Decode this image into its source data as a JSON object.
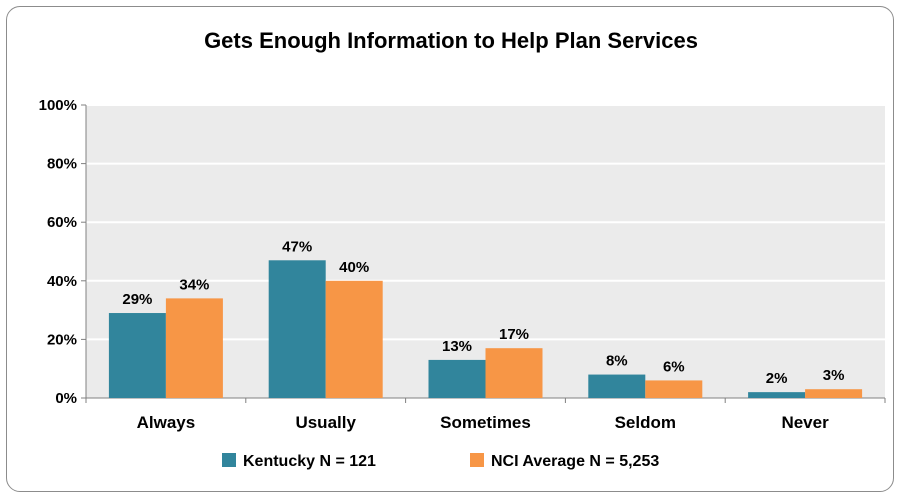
{
  "chart_data": {
    "type": "bar",
    "title": "Gets Enough Information to Help Plan Services",
    "xlabel": "",
    "ylabel": "",
    "categories": [
      "Always",
      "Usually",
      "Sometimes",
      "Seldom",
      "Never"
    ],
    "series": [
      {
        "name": "Kentucky N = 121",
        "color": "#31859c",
        "values": [
          29,
          47,
          13,
          8,
          2
        ],
        "labels": [
          "29%",
          "47%",
          "13%",
          "8%",
          "2%"
        ]
      },
      {
        "name": "NCI Average N = 5,253",
        "color": "#f79646",
        "values": [
          34,
          40,
          17,
          6,
          3
        ],
        "labels": [
          "34%",
          "40%",
          "17%",
          "6%",
          "3%"
        ]
      }
    ],
    "ylim": [
      0,
      100
    ],
    "yticks": [
      0,
      20,
      40,
      60,
      80,
      100
    ],
    "ytick_labels": [
      "0%",
      "20%",
      "40%",
      "60%",
      "80%",
      "100%"
    ],
    "grid": true,
    "legend": "bottom",
    "plot_background": "#ebebeb",
    "gridline_color": "#ffffff"
  }
}
